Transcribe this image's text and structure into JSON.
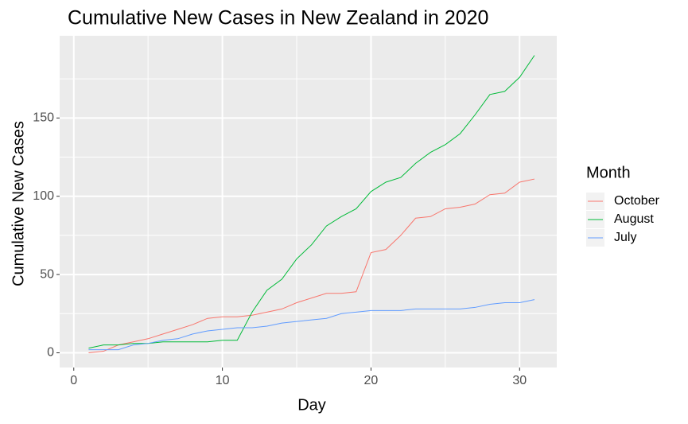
{
  "chart_data": {
    "type": "line",
    "title": "Cumulative New Cases in New Zealand in 2020",
    "x_label": "Day",
    "y_label": "Cumulative New Cases",
    "legend_title": "Month",
    "x": [
      1,
      2,
      3,
      4,
      5,
      6,
      7,
      8,
      9,
      10,
      11,
      12,
      13,
      14,
      15,
      16,
      17,
      18,
      19,
      20,
      21,
      22,
      23,
      24,
      25,
      26,
      27,
      28,
      29,
      30,
      31
    ],
    "series": [
      {
        "name": "October",
        "color": "#F8766D",
        "values": [
          0,
          1,
          5,
          7,
          9,
          12,
          15,
          18,
          22,
          23,
          23,
          24,
          26,
          28,
          32,
          35,
          38,
          38,
          39,
          64,
          66,
          75,
          86,
          87,
          92,
          93,
          95,
          101,
          102,
          109,
          111
        ]
      },
      {
        "name": "August",
        "color": "#00BA38",
        "values": [
          3,
          5,
          5,
          6,
          6,
          7,
          7,
          7,
          7,
          8,
          8,
          26,
          40,
          47,
          60,
          69,
          81,
          87,
          92,
          103,
          109,
          112,
          121,
          128,
          133,
          140,
          152,
          165,
          167,
          176,
          190
        ]
      },
      {
        "name": "July",
        "color": "#619CFF",
        "values": [
          2,
          2,
          2,
          5,
          6,
          8,
          9,
          12,
          14,
          15,
          16,
          16,
          17,
          19,
          20,
          21,
          22,
          25,
          26,
          27,
          27,
          27,
          28,
          28,
          28,
          28,
          29,
          31,
          32,
          32,
          34
        ]
      }
    ],
    "xlim": [
      -0.95,
      32.5
    ],
    "ylim": [
      -9.4,
      202.5
    ],
    "xticks": [
      0,
      10,
      20,
      30
    ],
    "yticks": [
      0,
      50,
      100,
      150
    ],
    "xminor": [
      5,
      15,
      25
    ],
    "yminor": [
      25,
      75,
      125,
      175
    ],
    "grid": true,
    "legend_position": "right"
  }
}
